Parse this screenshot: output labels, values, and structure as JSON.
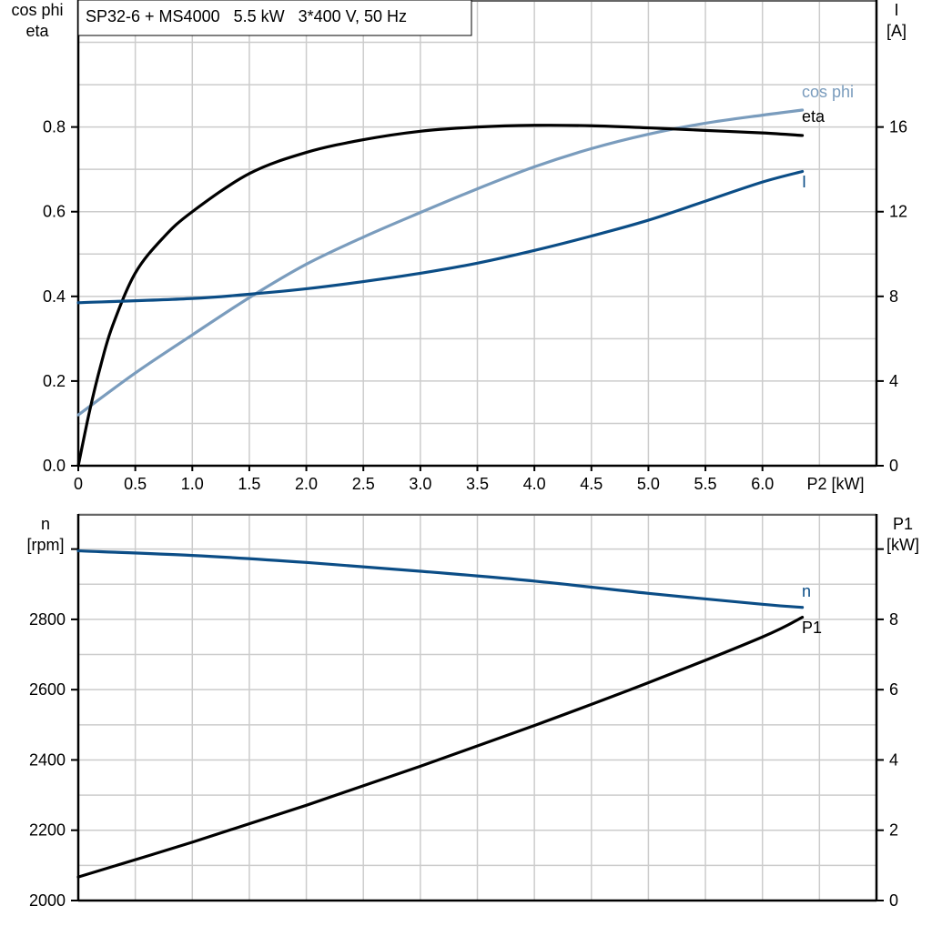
{
  "chart_data": [
    {
      "type": "line",
      "title": "SP32-6 + MS4000   5.5 kW   3*400 V, 50 Hz",
      "xlabel": "P2 [kW]",
      "xlim": [
        0,
        7
      ],
      "x_ticks": [
        "0",
        "0.5",
        "1.0",
        "1.5",
        "2.0",
        "2.5",
        "3.0",
        "3.5",
        "4.0",
        "4.5",
        "5.0",
        "5.5",
        "6.0"
      ],
      "ylabel_left": [
        "cos phi",
        "eta"
      ],
      "ylim_left": [
        0,
        1.1
      ],
      "y_ticks_left": [
        "0.0",
        "0.2",
        "0.4",
        "0.6",
        "0.8"
      ],
      "ylabel_right": [
        "I",
        "[A]"
      ],
      "ylim_right": [
        0,
        22
      ],
      "y_ticks_right": [
        "0",
        "4",
        "8",
        "12",
        "16"
      ],
      "grid": true,
      "series": [
        {
          "name": "cos phi",
          "axis": "left",
          "color": "#7a9cbd",
          "x": [
            0,
            0.5,
            1.0,
            1.5,
            2.0,
            2.5,
            3.0,
            3.5,
            4.0,
            4.5,
            5.0,
            5.5,
            6.0,
            6.35
          ],
          "y": [
            0.12,
            0.219,
            0.309,
            0.397,
            0.476,
            0.54,
            0.598,
            0.654,
            0.706,
            0.749,
            0.783,
            0.809,
            0.828,
            0.84
          ]
        },
        {
          "name": "eta",
          "axis": "left",
          "color": "#000000",
          "x": [
            0,
            0.1,
            0.2,
            0.3,
            0.5,
            0.75,
            1.0,
            1.5,
            2.0,
            2.5,
            3.0,
            3.5,
            4.0,
            4.5,
            5.0,
            5.5,
            6.0,
            6.35
          ],
          "y": [
            0,
            0.13,
            0.24,
            0.33,
            0.455,
            0.54,
            0.6,
            0.69,
            0.74,
            0.77,
            0.79,
            0.8,
            0.804,
            0.803,
            0.798,
            0.792,
            0.786,
            0.78
          ]
        },
        {
          "name": "I",
          "axis": "right",
          "color": "#0b4d86",
          "x": [
            0,
            1.0,
            1.6,
            2.0,
            2.5,
            3.0,
            3.5,
            4.0,
            4.5,
            5.0,
            5.5,
            6.0,
            6.35
          ],
          "y": [
            7.7,
            7.9,
            8.15,
            8.36,
            8.7,
            9.09,
            9.57,
            10.17,
            10.85,
            11.6,
            12.5,
            13.4,
            13.9
          ]
        }
      ]
    },
    {
      "type": "line",
      "xlim": [
        0,
        7
      ],
      "ylabel_left": [
        "n",
        "[rpm]"
      ],
      "ylim_left": [
        2000,
        3100
      ],
      "y_ticks_left": [
        "2000",
        "2200",
        "2400",
        "2600",
        "2800"
      ],
      "ylabel_right": [
        "P1",
        "[kW]"
      ],
      "ylim_right": [
        0,
        11
      ],
      "y_ticks_right": [
        "0",
        "2",
        "4",
        "6",
        "8"
      ],
      "grid": true,
      "series": [
        {
          "name": "n",
          "axis": "left",
          "color": "#0b4d86",
          "x": [
            0,
            1.0,
            2.0,
            3.0,
            4.0,
            5.0,
            6.0,
            6.35
          ],
          "y": [
            2995,
            2982,
            2962,
            2937,
            2909,
            2874,
            2843,
            2834
          ]
        },
        {
          "name": "P1",
          "axis": "right",
          "color": "#000000",
          "x": [
            0,
            1.0,
            2.0,
            3.0,
            4.0,
            5.0,
            6.0,
            6.35
          ],
          "y": [
            0.67,
            1.66,
            2.71,
            3.82,
            4.98,
            6.2,
            7.5,
            8.06
          ]
        }
      ]
    }
  ]
}
